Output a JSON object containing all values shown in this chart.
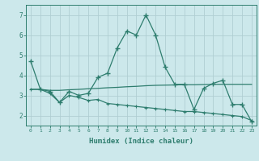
{
  "line1_x": [
    0,
    1,
    2,
    3,
    4,
    5,
    6,
    7,
    8,
    9,
    10,
    11,
    12,
    13,
    14,
    15,
    16,
    17,
    18,
    19,
    20,
    21,
    22,
    23
  ],
  "line1_y": [
    4.7,
    3.3,
    3.2,
    2.65,
    3.2,
    3.0,
    3.1,
    3.9,
    4.1,
    5.35,
    6.2,
    6.0,
    7.0,
    6.0,
    4.4,
    3.55,
    3.55,
    2.3,
    3.35,
    3.6,
    3.75,
    2.55,
    2.55,
    1.7
  ],
  "line2_x": [
    0,
    1,
    2,
    3,
    4,
    5,
    6,
    7,
    8,
    9,
    10,
    11,
    12,
    13,
    14,
    15,
    16,
    17,
    18,
    19,
    20,
    21,
    22,
    23
  ],
  "line2_y": [
    3.3,
    3.3,
    3.25,
    3.25,
    3.28,
    3.3,
    3.33,
    3.35,
    3.38,
    3.4,
    3.43,
    3.45,
    3.48,
    3.5,
    3.51,
    3.52,
    3.53,
    3.53,
    3.54,
    3.55,
    3.55,
    3.55,
    3.55,
    3.55
  ],
  "line3_x": [
    0,
    1,
    2,
    3,
    4,
    5,
    6,
    7,
    8,
    9,
    10,
    11,
    12,
    13,
    14,
    15,
    16,
    17,
    18,
    19,
    20,
    21,
    22,
    23
  ],
  "line3_y": [
    3.3,
    3.3,
    3.1,
    2.65,
    3.0,
    2.9,
    2.75,
    2.8,
    2.6,
    2.55,
    2.5,
    2.45,
    2.4,
    2.35,
    2.3,
    2.25,
    2.2,
    2.2,
    2.15,
    2.1,
    2.05,
    2.0,
    1.95,
    1.75
  ],
  "line_color": "#2e7d6e",
  "bg_color": "#cce8eb",
  "grid_color": "#b0ced2",
  "xlabel": "Humidex (Indice chaleur)",
  "ylim": [
    1.5,
    7.5
  ],
  "xlim": [
    -0.5,
    23.5
  ],
  "yticks": [
    2,
    3,
    4,
    5,
    6,
    7
  ],
  "xticks": [
    0,
    1,
    2,
    3,
    4,
    5,
    6,
    7,
    8,
    9,
    10,
    11,
    12,
    13,
    14,
    15,
    16,
    17,
    18,
    19,
    20,
    21,
    22,
    23
  ]
}
